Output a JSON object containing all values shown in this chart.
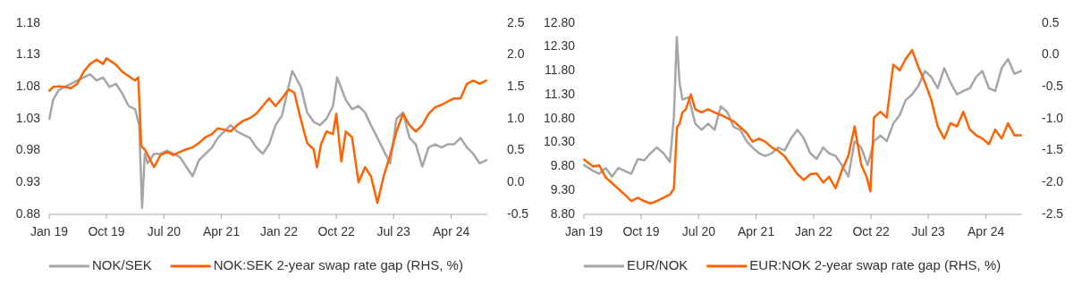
{
  "chart_data": [
    {
      "type": "line",
      "legend": "bottom",
      "marker": "none",
      "line_style": "solid",
      "xlim": [
        "2019-01-01",
        "2024-09-20"
      ],
      "xticks": [
        {
          "value": "2019-01-01",
          "label": "Jan 19"
        },
        {
          "value": "2019-10-01",
          "label": "Oct 19"
        },
        {
          "value": "2020-07-01",
          "label": "Jul 20"
        },
        {
          "value": "2021-04-01",
          "label": "Apr 21"
        },
        {
          "value": "2022-01-01",
          "label": "Jan 22"
        },
        {
          "value": "2022-10-01",
          "label": "Oct 22"
        },
        {
          "value": "2023-07-01",
          "label": "Jul 23"
        },
        {
          "value": "2024-04-01",
          "label": "Apr 24"
        }
      ],
      "ylim": [
        0.88,
        1.18
      ],
      "yticks": [
        0.88,
        0.93,
        0.98,
        1.03,
        1.08,
        1.13,
        1.18
      ],
      "y2lim": [
        -0.5,
        2.5
      ],
      "y2ticks": [
        {
          "value": -0.5,
          "label": "-0.5"
        },
        {
          "value": 0,
          "label": "0.0"
        },
        {
          "value": 0.5,
          "label": "0.5"
        },
        {
          "value": 1,
          "label": "1.0"
        },
        {
          "value": 1.5,
          "label": "1.5"
        },
        {
          "value": 2,
          "label": "2.0"
        },
        {
          "value": 2.5,
          "label": "2.5"
        }
      ],
      "series": [
        {
          "name": "NOK/SEK",
          "color": "#a6a6a6",
          "x": [
            "2019-01-02",
            "2019-01-20",
            "2019-02-15",
            "2019-03-15",
            "2019-04-15",
            "2019-05-15",
            "2019-06-15",
            "2019-07-15",
            "2019-08-15",
            "2019-09-15",
            "2019-10-15",
            "2019-11-15",
            "2019-12-15",
            "2020-01-15",
            "2020-02-15",
            "2020-03-05",
            "2020-03-19",
            "2020-04-01",
            "2020-04-15",
            "2020-05-15",
            "2020-06-15",
            "2020-07-15",
            "2020-08-15",
            "2020-09-15",
            "2020-10-15",
            "2020-11-15",
            "2020-12-15",
            "2021-01-15",
            "2021-02-15",
            "2021-03-15",
            "2021-04-15",
            "2021-05-15",
            "2021-06-15",
            "2021-07-15",
            "2021-08-15",
            "2021-09-15",
            "2021-10-15",
            "2021-11-15",
            "2021-12-15",
            "2022-01-15",
            "2022-02-15",
            "2022-03-05",
            "2022-04-15",
            "2022-05-15",
            "2022-06-15",
            "2022-07-15",
            "2022-08-15",
            "2022-09-15",
            "2022-10-05",
            "2022-11-15",
            "2022-12-15",
            "2023-01-15",
            "2023-02-15",
            "2023-03-15",
            "2023-04-15",
            "2023-05-15",
            "2023-06-15",
            "2023-07-15",
            "2023-08-15",
            "2023-09-15",
            "2023-10-15",
            "2023-11-15",
            "2023-12-15",
            "2024-01-15",
            "2024-02-15",
            "2024-03-15",
            "2024-04-15",
            "2024-05-15",
            "2024-06-15",
            "2024-07-15",
            "2024-08-15",
            "2024-09-15"
          ],
          "values": [
            1.03,
            1.06,
            1.075,
            1.08,
            1.085,
            1.09,
            1.095,
            1.1,
            1.09,
            1.095,
            1.08,
            1.085,
            1.07,
            1.05,
            1.045,
            1.02,
            0.89,
            0.975,
            0.96,
            0.975,
            0.975,
            0.98,
            0.975,
            0.97,
            0.955,
            0.94,
            0.965,
            0.975,
            0.985,
            1.0,
            1.01,
            1.02,
            1.01,
            1.005,
            1.0,
            0.985,
            0.975,
            0.99,
            1.02,
            1.035,
            1.08,
            1.105,
            1.08,
            1.04,
            1.025,
            1.02,
            1.03,
            1.05,
            1.095,
            1.06,
            1.045,
            1.05,
            1.04,
            1.02,
            1.0,
            0.98,
            0.96,
            1.03,
            1.04,
            1.0,
            0.99,
            0.955,
            0.985,
            0.99,
            0.985,
            0.99,
            0.99,
            1.0,
            0.985,
            0.975,
            0.96,
            0.965
          ]
        },
        {
          "name": "NOK:SEK 2-year swap rate gap (RHS, %)",
          "color": "#ff6200",
          "axis": "y2",
          "x": [
            "2019-01-02",
            "2019-01-20",
            "2019-02-15",
            "2019-03-15",
            "2019-04-15",
            "2019-05-15",
            "2019-06-15",
            "2019-07-15",
            "2019-08-15",
            "2019-09-15",
            "2019-10-01",
            "2019-11-15",
            "2019-12-15",
            "2020-01-15",
            "2020-02-15",
            "2020-03-01",
            "2020-03-15",
            "2020-03-31",
            "2020-04-15",
            "2020-05-15",
            "2020-06-15",
            "2020-07-15",
            "2020-08-15",
            "2020-09-15",
            "2020-10-15",
            "2020-11-15",
            "2020-12-15",
            "2021-01-15",
            "2021-02-15",
            "2021-03-15",
            "2021-04-15",
            "2021-05-15",
            "2021-06-15",
            "2021-07-15",
            "2021-08-15",
            "2021-09-15",
            "2021-10-15",
            "2021-11-15",
            "2021-12-15",
            "2022-01-15",
            "2022-02-15",
            "2022-03-15",
            "2022-04-15",
            "2022-05-15",
            "2022-06-15",
            "2022-07-01",
            "2022-07-20",
            "2022-08-15",
            "2022-09-15",
            "2022-10-01",
            "2022-10-25",
            "2022-11-15",
            "2022-12-15",
            "2023-01-15",
            "2023-02-15",
            "2023-03-15",
            "2023-04-15",
            "2023-05-15",
            "2023-06-15",
            "2023-07-15",
            "2023-08-15",
            "2023-09-15",
            "2023-10-15",
            "2023-11-15",
            "2023-12-15",
            "2024-01-15",
            "2024-02-15",
            "2024-03-15",
            "2024-04-15",
            "2024-05-15",
            "2024-06-15",
            "2024-07-15",
            "2024-08-15",
            "2024-09-15"
          ],
          "values": [
            1.44,
            1.5,
            1.51,
            1.5,
            1.48,
            1.55,
            1.74,
            1.86,
            1.93,
            1.86,
            1.95,
            1.85,
            1.74,
            1.67,
            1.6,
            1.65,
            0.57,
            0.52,
            0.43,
            0.24,
            0.43,
            0.48,
            0.43,
            0.48,
            0.52,
            0.55,
            0.62,
            0.71,
            0.76,
            0.85,
            0.83,
            0.8,
            0.9,
            0.97,
            1.01,
            1.08,
            1.2,
            1.32,
            1.2,
            1.32,
            1.46,
            1.41,
            0.99,
            0.62,
            0.52,
            0.24,
            0.6,
            0.8,
            0.76,
            1.08,
            0.33,
            0.8,
            0.71,
            0.0,
            0.24,
            0.1,
            -0.32,
            0.1,
            0.43,
            0.8,
            1.08,
            0.9,
            0.8,
            0.9,
            1.08,
            1.18,
            1.22,
            1.27,
            1.32,
            1.32,
            1.55,
            1.6,
            1.55,
            1.6
          ]
        }
      ]
    },
    {
      "type": "line",
      "legend": "bottom",
      "marker": "none",
      "line_style": "solid",
      "xlim": [
        "2019-01-01",
        "2024-09-20"
      ],
      "xticks": [
        {
          "value": "2019-01-01",
          "label": "Jan 19"
        },
        {
          "value": "2019-10-01",
          "label": "Oct 19"
        },
        {
          "value": "2020-07-01",
          "label": "Jul 20"
        },
        {
          "value": "2021-04-01",
          "label": "Apr 21"
        },
        {
          "value": "2022-01-01",
          "label": "Jan 22"
        },
        {
          "value": "2022-10-01",
          "label": "Oct 22"
        },
        {
          "value": "2023-07-01",
          "label": "Jul 23"
        },
        {
          "value": "2024-04-01",
          "label": "Apr 24"
        }
      ],
      "ylim": [
        8.8,
        12.8
      ],
      "yticks": [
        {
          "value": 8.8,
          "label": "8.80"
        },
        {
          "value": 9.3,
          "label": "9.30"
        },
        {
          "value": 9.8,
          "label": "9.80"
        },
        {
          "value": 10.3,
          "label": "10.30"
        },
        {
          "value": 10.8,
          "label": "10.80"
        },
        {
          "value": 11.3,
          "label": "11.30"
        },
        {
          "value": 11.8,
          "label": "11.80"
        },
        {
          "value": 12.3,
          "label": "12.30"
        },
        {
          "value": 12.8,
          "label": "12.80"
        }
      ],
      "y2lim": [
        -2.5,
        0.5
      ],
      "y2ticks": [
        {
          "value": -2.5,
          "label": "-2.5"
        },
        {
          "value": -2,
          "label": "-2.0"
        },
        {
          "value": -1.5,
          "label": "-1.5"
        },
        {
          "value": -1,
          "label": "-1.0"
        },
        {
          "value": -0.5,
          "label": "-0.5"
        },
        {
          "value": 0,
          "label": "0.0"
        },
        {
          "value": 0.5,
          "label": "0.5"
        }
      ],
      "series": [
        {
          "name": "EUR/NOK",
          "color": "#a6a6a6",
          "x": [
            "2019-01-02",
            "2019-02-15",
            "2019-03-15",
            "2019-04-15",
            "2019-05-15",
            "2019-06-15",
            "2019-07-15",
            "2019-08-15",
            "2019-09-15",
            "2019-10-15",
            "2019-11-15",
            "2019-12-15",
            "2020-01-15",
            "2020-02-15",
            "2020-03-05",
            "2020-03-19",
            "2020-04-01",
            "2020-04-15",
            "2020-05-15",
            "2020-06-15",
            "2020-07-15",
            "2020-08-15",
            "2020-09-15",
            "2020-10-15",
            "2020-11-15",
            "2020-12-15",
            "2021-01-15",
            "2021-02-15",
            "2021-03-15",
            "2021-04-15",
            "2021-05-15",
            "2021-06-15",
            "2021-07-15",
            "2021-08-15",
            "2021-09-15",
            "2021-10-15",
            "2021-11-15",
            "2021-12-15",
            "2022-01-15",
            "2022-02-15",
            "2022-03-15",
            "2022-04-15",
            "2022-05-15",
            "2022-06-15",
            "2022-07-15",
            "2022-08-15",
            "2022-09-15",
            "2022-10-15",
            "2022-11-15",
            "2022-12-15",
            "2023-01-15",
            "2023-02-15",
            "2023-03-15",
            "2023-04-15",
            "2023-05-15",
            "2023-06-15",
            "2023-07-15",
            "2023-08-15",
            "2023-09-15",
            "2023-10-15",
            "2023-11-15",
            "2023-12-15",
            "2024-01-15",
            "2024-02-15",
            "2024-03-15",
            "2024-04-15",
            "2024-05-15",
            "2024-06-15",
            "2024-07-15",
            "2024-08-15",
            "2024-09-15"
          ],
          "values": [
            9.83,
            9.71,
            9.65,
            9.77,
            9.59,
            9.77,
            9.71,
            9.65,
            9.96,
            9.93,
            10.08,
            10.2,
            10.08,
            9.9,
            10.82,
            12.51,
            11.56,
            11.2,
            11.25,
            10.7,
            10.57,
            10.7,
            10.57,
            11.06,
            10.94,
            10.63,
            10.57,
            10.33,
            10.2,
            10.08,
            10.02,
            10.08,
            10.2,
            10.14,
            10.39,
            10.57,
            10.39,
            10.08,
            9.96,
            10.2,
            10.08,
            10.02,
            9.83,
            9.59,
            10.33,
            10.2,
            9.83,
            10.33,
            10.45,
            10.33,
            10.7,
            10.88,
            11.19,
            11.31,
            11.49,
            11.8,
            11.68,
            11.44,
            11.86,
            11.56,
            11.31,
            11.38,
            11.44,
            11.68,
            11.8,
            11.44,
            11.38,
            11.86,
            12.05,
            11.74,
            11.8
          ]
        },
        {
          "name": "EUR:NOK 2-year swap rate gap (RHS, %)",
          "color": "#ff6200",
          "axis": "y2",
          "x": [
            "2019-01-02",
            "2019-02-15",
            "2019-03-15",
            "2019-04-15",
            "2019-05-15",
            "2019-06-15",
            "2019-07-15",
            "2019-08-15",
            "2019-09-15",
            "2019-10-15",
            "2019-11-15",
            "2019-12-15",
            "2020-01-15",
            "2020-02-15",
            "2020-03-05",
            "2020-03-20",
            "2020-04-01",
            "2020-04-15",
            "2020-05-01",
            "2020-05-25",
            "2020-06-15",
            "2020-07-15",
            "2020-08-15",
            "2020-09-15",
            "2020-10-15",
            "2020-11-15",
            "2020-12-15",
            "2021-01-15",
            "2021-02-15",
            "2021-03-15",
            "2021-04-15",
            "2021-05-15",
            "2021-06-15",
            "2021-07-15",
            "2021-08-15",
            "2021-09-15",
            "2021-10-15",
            "2021-11-15",
            "2021-12-15",
            "2022-01-15",
            "2022-02-15",
            "2022-03-15",
            "2022-04-15",
            "2022-05-15",
            "2022-06-15",
            "2022-07-15",
            "2022-08-15",
            "2022-09-10",
            "2022-09-28",
            "2022-10-15",
            "2022-11-15",
            "2022-12-15",
            "2023-01-15",
            "2023-02-15",
            "2023-03-15",
            "2023-04-15",
            "2023-05-15",
            "2023-06-15",
            "2023-07-15",
            "2023-08-15",
            "2023-09-15",
            "2023-10-15",
            "2023-11-15",
            "2023-12-15",
            "2024-01-15",
            "2024-02-15",
            "2024-03-15",
            "2024-04-15",
            "2024-05-15",
            "2024-06-15",
            "2024-07-15",
            "2024-08-15",
            "2024-09-15"
          ],
          "values": [
            -1.64,
            -1.75,
            -1.73,
            -1.92,
            -2.01,
            -2.1,
            -2.19,
            -2.29,
            -2.24,
            -2.29,
            -2.33,
            -2.29,
            -2.24,
            -2.19,
            -2.1,
            -1.13,
            -1.08,
            -0.9,
            -0.85,
            -0.62,
            -0.85,
            -0.9,
            -0.85,
            -0.9,
            -0.94,
            -0.99,
            -1.04,
            -1.13,
            -1.22,
            -1.36,
            -1.31,
            -1.36,
            -1.45,
            -1.5,
            -1.59,
            -1.73,
            -1.87,
            -1.96,
            -1.87,
            -1.86,
            -2.0,
            -1.91,
            -2.09,
            -1.81,
            -1.58,
            -1.12,
            -1.72,
            -1.91,
            -2.14,
            -0.98,
            -0.89,
            -0.98,
            -0.15,
            -0.24,
            -0.06,
            0.08,
            -0.19,
            -0.43,
            -0.7,
            -1.12,
            -1.31,
            -1.07,
            -1.12,
            -0.89,
            -1.17,
            -1.26,
            -1.31,
            -1.4,
            -1.17,
            -1.31,
            -1.07,
            -1.26,
            -1.26
          ]
        }
      ]
    }
  ]
}
